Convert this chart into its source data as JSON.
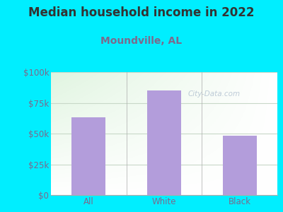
{
  "title": "Median household income in 2022",
  "subtitle": "Moundville, AL",
  "categories": [
    "All",
    "White",
    "Black"
  ],
  "values": [
    63000,
    85000,
    48000
  ],
  "bar_color": "#b39ddb",
  "background_outer": "#00eeff",
  "title_color": "#333333",
  "subtitle_color": "#7b6a8d",
  "tick_label_color": "#7b6a8d",
  "xlabel_color": "#7b6a8d",
  "ylim": [
    0,
    100000
  ],
  "yticks": [
    0,
    25000,
    50000,
    75000,
    100000
  ],
  "ytick_labels": [
    "$0",
    "$25k",
    "$50k",
    "$75k",
    "$100k"
  ],
  "watermark": "City-Data.com",
  "title_fontsize": 12,
  "subtitle_fontsize": 10,
  "tick_fontsize": 8.5,
  "grid_color": "#c8d8c8",
  "grid_linewidth": 0.8
}
